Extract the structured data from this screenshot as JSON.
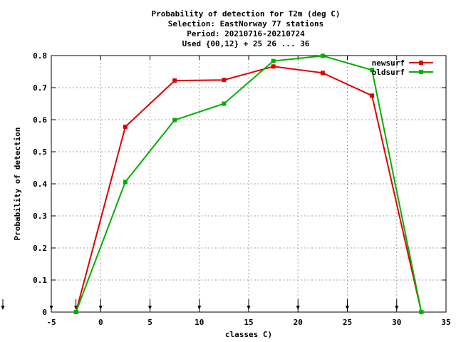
{
  "chart_data": {
    "type": "line",
    "title_lines": [
      "Probability of detection  for T2m (deg C)",
      "Selection: EastNorway     77 stations",
      "Period: 20210716-20210724",
      "Used {00,12} + 25 26 ... 36"
    ],
    "xlabel": "classes C)",
    "ylabel": "Probability of detection",
    "xlim": [
      -5,
      35
    ],
    "ylim": [
      0,
      0.8
    ],
    "xticks": [
      -5,
      0,
      5,
      10,
      15,
      20,
      25,
      30,
      35
    ],
    "yticks": [
      0,
      0.1,
      0.2,
      0.3,
      0.4,
      0.5,
      0.6,
      0.7,
      0.8
    ],
    "grid": true,
    "legend_position": "top-right",
    "class_markers_x": [
      -5,
      -2.5,
      0,
      5,
      10,
      15,
      20,
      25,
      30
    ],
    "series": [
      {
        "name": "newsurf",
        "color": "#e00000",
        "x": [
          -2.5,
          2.5,
          7.5,
          12.5,
          17.5,
          22.5,
          27.5,
          32.5
        ],
        "y": [
          0.0,
          0.578,
          0.722,
          0.724,
          0.766,
          0.746,
          0.675,
          0.0
        ]
      },
      {
        "name": "oldsurf",
        "color": "#00b000",
        "x": [
          -2.5,
          2.5,
          7.5,
          12.5,
          17.5,
          22.5,
          27.5,
          32.5
        ],
        "y": [
          0.0,
          0.406,
          0.599,
          0.65,
          0.783,
          0.799,
          0.755,
          0.0
        ]
      }
    ]
  }
}
